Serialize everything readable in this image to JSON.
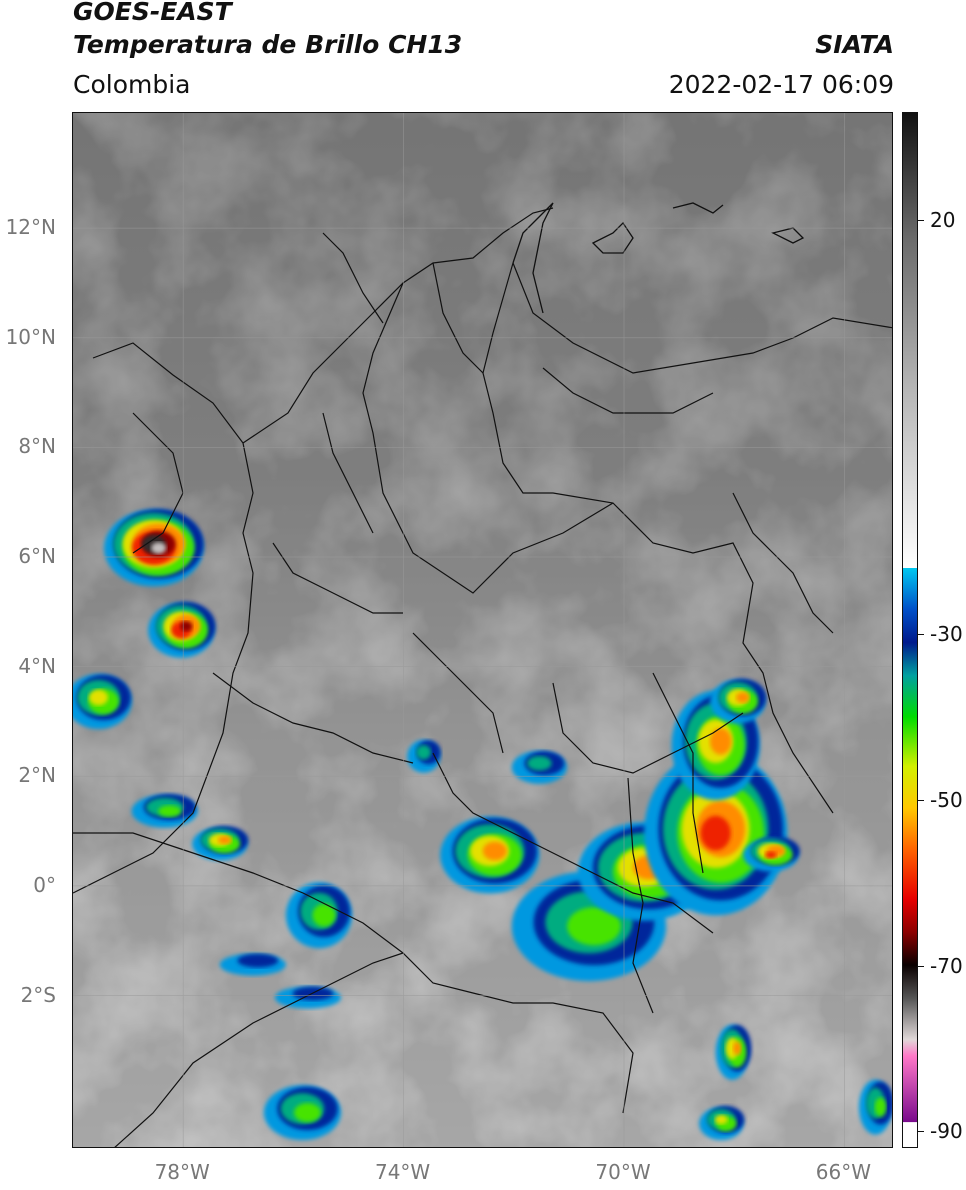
{
  "header": {
    "title_line1": "GOES-EAST",
    "title_line2": "Temperatura de Brillo CH13",
    "region": "Colombia",
    "agency": "SIATA",
    "datetime": "2022-02-17 06:09"
  },
  "map": {
    "lon_range": [
      -80,
      -65.1
    ],
    "lat_range": [
      -4.8,
      14.1
    ],
    "lat_ticks": [
      {
        "value": 12,
        "label": "12°N"
      },
      {
        "value": 10,
        "label": "10°N"
      },
      {
        "value": 8,
        "label": "8°N"
      },
      {
        "value": 6,
        "label": "6°N"
      },
      {
        "value": 4,
        "label": "4°N"
      },
      {
        "value": 2,
        "label": "2°N"
      },
      {
        "value": 0,
        "label": "0°"
      },
      {
        "value": -2,
        "label": "2°S"
      }
    ],
    "lon_ticks": [
      {
        "value": -78,
        "label": "78°W"
      },
      {
        "value": -74,
        "label": "74°W"
      },
      {
        "value": -70,
        "label": "70°W"
      },
      {
        "value": -66,
        "label": "66°W"
      }
    ],
    "gridlines": true,
    "convective_cells": [
      {
        "lon": -78.5,
        "lat": 6.2,
        "rx": 0.9,
        "ry": 0.7,
        "peak": -78
      },
      {
        "lon": -78.0,
        "lat": 4.7,
        "rx": 0.6,
        "ry": 0.5,
        "peak": -66
      },
      {
        "lon": -79.5,
        "lat": 3.4,
        "rx": 0.6,
        "ry": 0.5,
        "peak": -48
      },
      {
        "lon": -77.3,
        "lat": 0.8,
        "rx": 0.5,
        "ry": 0.3,
        "peak": -58
      },
      {
        "lon": -78.3,
        "lat": 1.4,
        "rx": 0.6,
        "ry": 0.3,
        "peak": -45
      },
      {
        "lon": -72.4,
        "lat": 0.6,
        "rx": 0.9,
        "ry": 0.7,
        "peak": -58
      },
      {
        "lon": -70.6,
        "lat": -0.7,
        "rx": 1.4,
        "ry": 1.0,
        "peak": -45
      },
      {
        "lon": -69.6,
        "lat": 0.3,
        "rx": 1.2,
        "ry": 0.9,
        "peak": -56
      },
      {
        "lon": -68.3,
        "lat": 1.0,
        "rx": 1.3,
        "ry": 1.5,
        "peak": -62
      },
      {
        "lon": -68.3,
        "lat": 2.6,
        "rx": 0.8,
        "ry": 1.0,
        "peak": -58
      },
      {
        "lon": -67.9,
        "lat": 3.4,
        "rx": 0.5,
        "ry": 0.4,
        "peak": -56
      },
      {
        "lon": -67.3,
        "lat": 0.6,
        "rx": 0.5,
        "ry": 0.3,
        "peak": -62
      },
      {
        "lon": -75.5,
        "lat": -0.5,
        "rx": 0.6,
        "ry": 0.6,
        "peak": -42
      },
      {
        "lon": -75.8,
        "lat": -4.1,
        "rx": 0.7,
        "ry": 0.5,
        "peak": -45
      },
      {
        "lon": -68.0,
        "lat": -3.0,
        "rx": 0.3,
        "ry": 0.5,
        "peak": -55
      },
      {
        "lon": -68.2,
        "lat": -4.3,
        "rx": 0.4,
        "ry": 0.3,
        "peak": -48
      },
      {
        "lon": -73.6,
        "lat": 2.4,
        "rx": 0.3,
        "ry": 0.3,
        "peak": -38
      },
      {
        "lon": -71.5,
        "lat": 2.2,
        "rx": 0.5,
        "ry": 0.3,
        "peak": -38
      },
      {
        "lon": -76.7,
        "lat": -1.4,
        "rx": 0.6,
        "ry": 0.2,
        "peak": -35
      },
      {
        "lon": -75.7,
        "lat": -2.0,
        "rx": 0.6,
        "ry": 0.2,
        "peak": -35
      },
      {
        "lon": -65.4,
        "lat": -4.0,
        "rx": 0.3,
        "ry": 0.5,
        "peak": -45
      }
    ]
  },
  "colorbar": {
    "range": [
      -92,
      33
    ],
    "ticks": [
      {
        "value": 20,
        "label": "20"
      },
      {
        "value": -30,
        "label": "-30"
      },
      {
        "value": -50,
        "label": "-50"
      },
      {
        "value": -70,
        "label": "-70"
      },
      {
        "value": -90,
        "label": "-90"
      }
    ],
    "stops": [
      {
        "v": 33,
        "c": "#111111"
      },
      {
        "v": 18,
        "c": "#6a6a6a"
      },
      {
        "v": 0,
        "c": "#b4b4b4"
      },
      {
        "v": -22,
        "c": "#ffffff"
      },
      {
        "v": -22.01,
        "c": "#00c8f0"
      },
      {
        "v": -27,
        "c": "#0050c8"
      },
      {
        "v": -31,
        "c": "#001a8c"
      },
      {
        "v": -35,
        "c": "#00a0a0"
      },
      {
        "v": -40,
        "c": "#00dc00"
      },
      {
        "v": -46,
        "c": "#d2f000"
      },
      {
        "v": -51,
        "c": "#ffc800"
      },
      {
        "v": -56,
        "c": "#ff6400"
      },
      {
        "v": -62,
        "c": "#e60000"
      },
      {
        "v": -66,
        "c": "#8c0000"
      },
      {
        "v": -70,
        "c": "#0a0000"
      },
      {
        "v": -74,
        "c": "#555555"
      },
      {
        "v": -79,
        "c": "#e0d8d8"
      },
      {
        "v": -81,
        "c": "#ff78c8"
      },
      {
        "v": -89,
        "c": "#780a8c"
      },
      {
        "v": -89.01,
        "c": "#ffffff"
      },
      {
        "v": -92,
        "c": "#ffffff"
      }
    ]
  }
}
